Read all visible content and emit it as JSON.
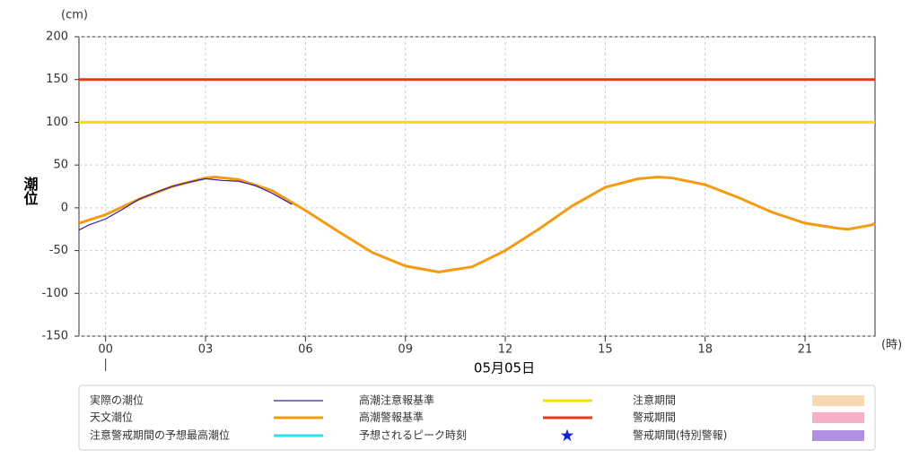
{
  "chart_data": {
    "type": "line",
    "y_unit": "(cm)",
    "x_unit": "(時)",
    "y_label": "潮位",
    "date_label": "05月05日",
    "xlim": [
      -0.8,
      23.1
    ],
    "xticks": [
      {
        "value": 0,
        "label": "00"
      },
      {
        "value": 3,
        "label": "03"
      },
      {
        "value": 6,
        "label": "06"
      },
      {
        "value": 9,
        "label": "09"
      },
      {
        "value": 12,
        "label": "12"
      },
      {
        "value": 15,
        "label": "15"
      },
      {
        "value": 18,
        "label": "18"
      },
      {
        "value": 21,
        "label": "21"
      }
    ],
    "ylim": [
      -150,
      200
    ],
    "yticks": [
      -150,
      -100,
      -50,
      0,
      50,
      100,
      150,
      200
    ],
    "grid": true,
    "series": [
      {
        "name": "実際の潮位",
        "color": "#3a1aa8",
        "width": 1.2,
        "x": [
          -0.8,
          -0.5,
          0,
          0.5,
          1,
          1.5,
          2,
          2.5,
          3,
          3.5,
          4,
          4.5,
          5,
          5.6
        ],
        "values": [
          -26,
          -20,
          -13,
          -2,
          10,
          18,
          25,
          30,
          34,
          32,
          31,
          26,
          17,
          4
        ]
      },
      {
        "name": "天文潮位",
        "color": "#f39c12",
        "width": 3,
        "x": [
          -0.8,
          0,
          1,
          2,
          3,
          3.3,
          4,
          5,
          6,
          7,
          8,
          9,
          10,
          11,
          12,
          13,
          14,
          15,
          16,
          16.6,
          17,
          18,
          19,
          20,
          21,
          22,
          22.3,
          23,
          23.1
        ],
        "values": [
          -18,
          -8,
          10,
          25,
          35,
          36,
          33,
          20,
          -3,
          -28,
          -52,
          -68,
          -75,
          -69,
          -50,
          -25,
          2,
          24,
          34,
          36,
          35,
          27,
          12,
          -5,
          -18,
          -24,
          -25,
          -20,
          -18
        ]
      },
      {
        "name": "高潮注意報基準",
        "color": "#f0e000",
        "width": 3,
        "x": [
          -0.8,
          23.1
        ],
        "values": [
          100,
          100
        ]
      },
      {
        "name": "高潮警報基準",
        "color": "#e8381a",
        "width": 3,
        "x": [
          -0.8,
          23.1
        ],
        "values": [
          150,
          150
        ]
      }
    ],
    "legend_extra": [
      {
        "name": "注意警戒期間の予想最高潮位",
        "color": "#22e5f0",
        "symbol": "line"
      },
      {
        "name": "予想されるピーク時刻",
        "color": "#1020e0",
        "symbol": "star"
      },
      {
        "name": "注意期間",
        "color": "#f8d8b0",
        "symbol": "band"
      },
      {
        "name": "警戒期間",
        "color": "#f8b0c8",
        "symbol": "band"
      },
      {
        "name": "警戒期間(特別警報)",
        "color": "#b090e0",
        "symbol": "band"
      }
    ]
  }
}
